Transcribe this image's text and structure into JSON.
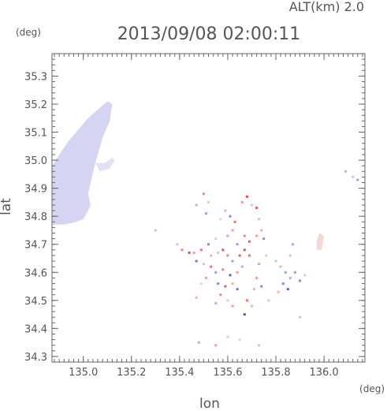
{
  "header": {
    "alt_label": "ALT(km) 2.0",
    "timestamp": "2013/09/08 02:00:11"
  },
  "colors": {
    "axis": "#666666",
    "text": "#555555",
    "positive": "#e23a3a",
    "negative": "#3a3ad8",
    "neutral": "#d7d7f2"
  },
  "chart_data": {
    "type": "scatter",
    "title": "2013/09/08 02:00:11",
    "subtitle": "ALT(km) 2.0",
    "xlabel": "lon",
    "ylabel": "lat",
    "x_unit": "(deg)",
    "y_unit": "(deg)",
    "xlim": [
      134.87,
      136.17
    ],
    "ylim": [
      34.28,
      35.38
    ],
    "x_ticks": [
      135.0,
      135.2,
      135.4,
      135.6,
      135.8,
      136.0
    ],
    "x_tick_labels": [
      "135.0",
      "135.2",
      "135.4",
      "135.6",
      "135.8",
      "136.0"
    ],
    "y_ticks": [
      34.3,
      34.4,
      34.5,
      34.6,
      34.7,
      34.8,
      34.9,
      35.0,
      35.1,
      35.2,
      35.3
    ],
    "y_tick_labels": [
      "34.3",
      "34.4",
      "34.5",
      "34.6",
      "34.7",
      "34.8",
      "34.9",
      "35.0",
      "35.1",
      "35.2",
      "35.3"
    ],
    "grid": false,
    "minor_ticks": true,
    "series": [
      {
        "kind": "region",
        "color": "#d5d5f3",
        "polygon": [
          [
            135.1,
            35.21
          ],
          [
            135.12,
            35.2
          ],
          [
            135.11,
            35.14
          ],
          [
            135.08,
            35.08
          ],
          [
            135.05,
            34.99
          ],
          [
            135.03,
            34.92
          ],
          [
            135.02,
            34.88
          ],
          [
            135.03,
            34.84
          ],
          [
            135.02,
            34.82
          ],
          [
            135.0,
            34.79
          ],
          [
            134.97,
            34.78
          ],
          [
            134.92,
            34.77
          ],
          [
            134.87,
            34.77
          ],
          [
            134.87,
            34.98
          ],
          [
            134.9,
            35.02
          ],
          [
            134.94,
            35.07
          ],
          [
            134.98,
            35.11
          ],
          [
            135.02,
            35.15
          ],
          [
            135.06,
            35.18
          ]
        ]
      },
      {
        "kind": "region",
        "color": "#e2e2f7",
        "polygon": [
          [
            135.05,
            34.99
          ],
          [
            135.09,
            34.99
          ],
          [
            135.12,
            35.01
          ],
          [
            135.13,
            35.0
          ],
          [
            135.11,
            34.97
          ],
          [
            135.07,
            34.96
          ]
        ]
      },
      {
        "kind": "region",
        "color": "#f4d7d7",
        "polygon": [
          [
            135.98,
            34.74
          ],
          [
            136.0,
            34.73
          ],
          [
            135.99,
            34.68
          ],
          [
            135.97,
            34.68
          ],
          [
            135.97,
            34.71
          ]
        ]
      },
      {
        "kind": "points",
        "points": [
          [
            135.5,
            34.88,
            0.6
          ],
          [
            135.47,
            34.84,
            -0.4
          ],
          [
            135.52,
            34.85,
            0.3
          ],
          [
            135.51,
            34.81,
            -0.5
          ],
          [
            135.68,
            34.87,
            0.9
          ],
          [
            135.66,
            34.85,
            0.5
          ],
          [
            135.7,
            34.84,
            -0.3
          ],
          [
            135.72,
            34.83,
            0.8
          ],
          [
            135.59,
            34.82,
            0.4
          ],
          [
            135.61,
            34.8,
            -0.6
          ],
          [
            135.63,
            34.78,
            0.7
          ],
          [
            135.57,
            34.79,
            -0.2
          ],
          [
            135.62,
            34.75,
            0.5
          ],
          [
            135.6,
            34.73,
            -0.4
          ],
          [
            135.67,
            34.73,
            0.6
          ],
          [
            135.69,
            34.71,
            0.8
          ],
          [
            135.64,
            34.7,
            -0.5
          ],
          [
            135.55,
            34.72,
            0.3
          ],
          [
            135.52,
            34.7,
            -0.6
          ],
          [
            135.49,
            34.68,
            0.7
          ],
          [
            135.46,
            34.67,
            0.5
          ],
          [
            135.47,
            34.64,
            -0.7
          ],
          [
            135.44,
            34.67,
            0.9
          ],
          [
            135.53,
            34.66,
            0.4
          ],
          [
            135.56,
            34.67,
            -0.3
          ],
          [
            135.58,
            34.68,
            0.9
          ],
          [
            135.6,
            34.66,
            0.6
          ],
          [
            135.62,
            34.64,
            -0.5
          ],
          [
            135.65,
            34.66,
            0.8
          ],
          [
            135.67,
            34.68,
            0.9
          ],
          [
            135.69,
            34.66,
            0.7
          ],
          [
            135.66,
            34.62,
            -0.4
          ],
          [
            135.64,
            34.6,
            0.5
          ],
          [
            135.61,
            34.59,
            -0.8
          ],
          [
            135.58,
            34.61,
            0.6
          ],
          [
            135.55,
            34.6,
            -0.5
          ],
          [
            135.53,
            34.62,
            0.7
          ],
          [
            135.5,
            34.63,
            -0.3
          ],
          [
            135.51,
            34.58,
            0.5
          ],
          [
            135.56,
            34.56,
            -0.6
          ],
          [
            135.59,
            34.55,
            0.8
          ],
          [
            135.62,
            34.56,
            0.4
          ],
          [
            135.64,
            34.54,
            -0.7
          ],
          [
            135.57,
            34.52,
            0.6
          ],
          [
            135.6,
            34.5,
            0.3
          ],
          [
            135.55,
            34.49,
            -0.4
          ],
          [
            135.62,
            34.48,
            0.5
          ],
          [
            135.49,
            34.56,
            -0.2
          ],
          [
            135.47,
            34.51,
            0.4
          ],
          [
            135.68,
            34.5,
            0.7
          ],
          [
            135.7,
            34.48,
            -0.3
          ],
          [
            135.67,
            34.45,
            -0.9
          ],
          [
            135.73,
            34.79,
            -0.3
          ],
          [
            135.74,
            34.75,
            0.4
          ],
          [
            135.75,
            34.72,
            -0.6
          ],
          [
            135.72,
            34.73,
            0.5
          ],
          [
            135.76,
            34.66,
            0.3
          ],
          [
            135.73,
            34.63,
            -0.4
          ],
          [
            135.72,
            34.58,
            0.5
          ],
          [
            135.74,
            34.55,
            -0.6
          ],
          [
            135.71,
            34.54,
            0.4
          ],
          [
            135.8,
            34.64,
            -0.3
          ],
          [
            135.82,
            34.62,
            0.4
          ],
          [
            135.86,
            34.66,
            -0.3
          ],
          [
            135.84,
            34.6,
            -0.5
          ],
          [
            135.86,
            34.58,
            -0.4
          ],
          [
            135.83,
            34.56,
            -0.6
          ],
          [
            135.81,
            34.53,
            0.4
          ],
          [
            135.85,
            34.54,
            -0.8
          ],
          [
            135.88,
            34.6,
            -0.5
          ],
          [
            135.9,
            34.57,
            -0.6
          ],
          [
            135.92,
            34.59,
            0.3
          ],
          [
            135.87,
            34.7,
            -0.4
          ],
          [
            135.9,
            34.44,
            -0.3
          ],
          [
            135.77,
            34.5,
            0.3
          ],
          [
            135.41,
            34.68,
            0.6
          ],
          [
            135.39,
            34.7,
            -0.3
          ],
          [
            135.3,
            34.75,
            -0.3
          ],
          [
            135.55,
            34.34,
            0.5
          ],
          [
            135.48,
            34.35,
            -0.4
          ],
          [
            135.6,
            34.37,
            0.3
          ],
          [
            135.65,
            34.36,
            -0.2
          ],
          [
            135.73,
            34.34,
            -0.3
          ],
          [
            136.09,
            34.96,
            -0.4
          ],
          [
            136.12,
            34.94,
            -0.3
          ],
          [
            136.14,
            34.93,
            -0.5
          ]
        ]
      }
    ]
  }
}
